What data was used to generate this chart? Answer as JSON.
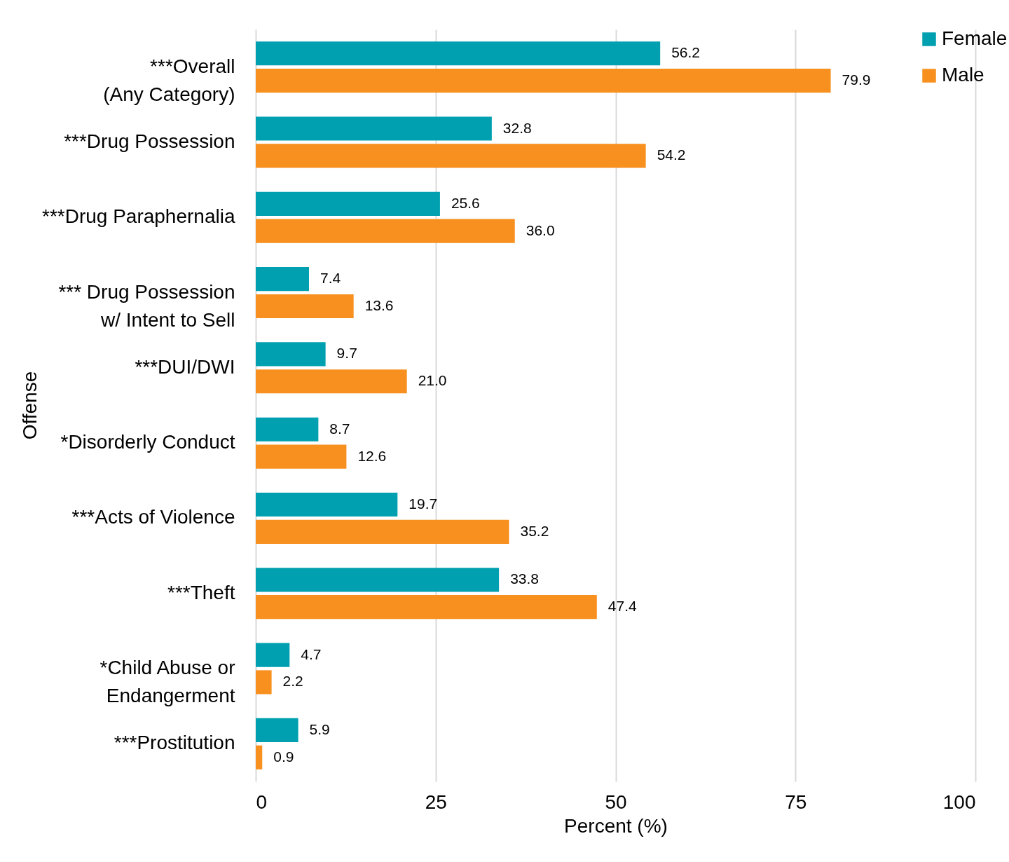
{
  "chart_data": {
    "type": "bar",
    "orientation": "horizontal",
    "xlabel": "Percent (%)",
    "ylabel": "Offense",
    "categories": [
      "***Overall\n(Any Category)",
      "***Drug Possession",
      "***Drug Paraphernalia",
      "*** Drug Possession\nw/ Intent to Sell",
      "***DUI/DWI",
      "*Disorderly Conduct",
      "***Acts of Violence",
      "***Theft",
      "*Child Abuse or\nEndangerment",
      "***Prostitution"
    ],
    "series": [
      {
        "name": "Female",
        "color": "#00a0b0",
        "values": [
          56.2,
          32.8,
          25.6,
          7.4,
          9.7,
          8.7,
          19.7,
          33.8,
          4.7,
          5.9
        ],
        "value_labels": [
          "56.2",
          "32.8",
          "25.6",
          "7.4",
          "9.7",
          "8.7",
          "19.7",
          "33.8",
          "4.7",
          "5.9"
        ]
      },
      {
        "name": "Male",
        "color": "#f7901e",
        "values": [
          79.9,
          54.2,
          36.0,
          13.6,
          21.0,
          12.6,
          35.2,
          47.4,
          2.2,
          0.9
        ],
        "value_labels": [
          "79.9",
          "54.2",
          "36.0",
          "13.6",
          "21.0",
          "12.6",
          "35.2",
          "47.4",
          "2.2",
          "0.9"
        ]
      }
    ],
    "xlim": [
      0,
      100
    ],
    "xticks": [
      0,
      25,
      50,
      75,
      100
    ],
    "grid": "x",
    "legend": "top right"
  }
}
